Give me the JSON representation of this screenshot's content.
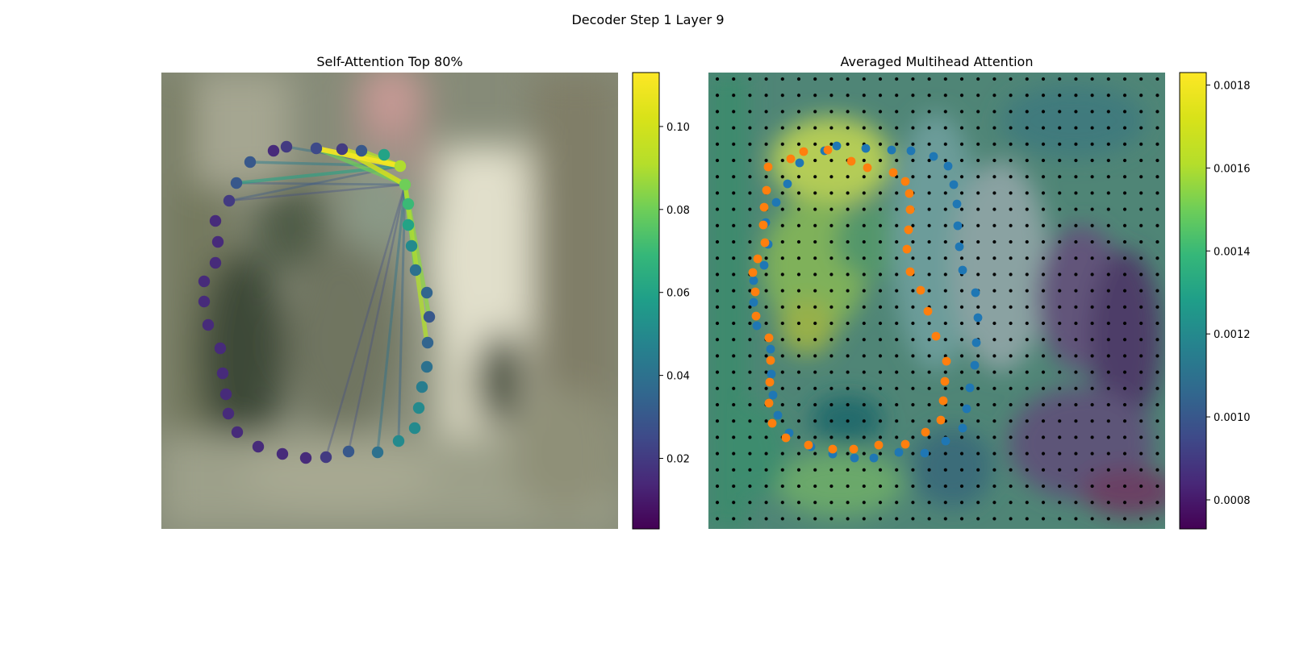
{
  "figure": {
    "suptitle": "Decoder Step 1 Layer 9"
  },
  "chart_data": [
    {
      "type": "scatter",
      "title": "Self-Attention Top 80%",
      "background": "blurred photo (muted green/beige)",
      "grid": false,
      "colormap": "viridis",
      "colorbar": {
        "ticks": [
          0.02,
          0.04,
          0.06,
          0.08,
          0.1
        ],
        "tick_labels": [
          "0.02",
          "0.04",
          "0.06",
          "0.08",
          "0.10"
        ],
        "range": [
          0.003,
          0.113
        ]
      },
      "points": [
        [
          355,
          182,
          0.02
        ],
        [
          392,
          184,
          0.025
        ],
        [
          424,
          185,
          0.02
        ],
        [
          448,
          187,
          0.03
        ],
        [
          476,
          192,
          0.06
        ],
        [
          496,
          206,
          0.09
        ],
        [
          502,
          229,
          0.08
        ],
        [
          506,
          253,
          0.07
        ],
        [
          506,
          279,
          0.06
        ],
        [
          510,
          305,
          0.05
        ],
        [
          515,
          335,
          0.04
        ],
        [
          529,
          363,
          0.035
        ],
        [
          532,
          393,
          0.03
        ],
        [
          530,
          425,
          0.035
        ],
        [
          529,
          455,
          0.04
        ],
        [
          523,
          480,
          0.045
        ],
        [
          519,
          506,
          0.05
        ],
        [
          514,
          531,
          0.05
        ],
        [
          494,
          547,
          0.05
        ],
        [
          468,
          561,
          0.04
        ],
        [
          432,
          560,
          0.03
        ],
        [
          404,
          567,
          0.02
        ],
        [
          379,
          568,
          0.015
        ],
        [
          350,
          563,
          0.015
        ],
        [
          320,
          554,
          0.015
        ],
        [
          294,
          536,
          0.015
        ],
        [
          283,
          513,
          0.015
        ],
        [
          280,
          489,
          0.015
        ],
        [
          276,
          463,
          0.015
        ],
        [
          273,
          432,
          0.015
        ],
        [
          258,
          403,
          0.015
        ],
        [
          253,
          374,
          0.015
        ],
        [
          253,
          349,
          0.015
        ],
        [
          267,
          326,
          0.015
        ],
        [
          270,
          300,
          0.015
        ],
        [
          267,
          274,
          0.015
        ],
        [
          284,
          249,
          0.02
        ],
        [
          293,
          227,
          0.03
        ],
        [
          310,
          201,
          0.03
        ],
        [
          339,
          187,
          0.015
        ]
      ],
      "attention_lines": [
        [
          496,
          206,
          392,
          184,
          0.11
        ],
        [
          496,
          206,
          424,
          185,
          0.1
        ],
        [
          496,
          206,
          448,
          187,
          0.09
        ],
        [
          496,
          206,
          293,
          227,
          0.06
        ],
        [
          496,
          206,
          310,
          201,
          0.045
        ],
        [
          496,
          206,
          284,
          249,
          0.03
        ],
        [
          496,
          206,
          355,
          182,
          0.04
        ],
        [
          502,
          229,
          529,
          425,
          0.09
        ],
        [
          502,
          229,
          532,
          393,
          0.085
        ],
        [
          502,
          229,
          515,
          335,
          0.08
        ],
        [
          502,
          229,
          424,
          185,
          0.1
        ],
        [
          502,
          229,
          392,
          184,
          0.08
        ],
        [
          502,
          229,
          468,
          561,
          0.04
        ],
        [
          502,
          229,
          494,
          547,
          0.035
        ],
        [
          502,
          229,
          404,
          567,
          0.025
        ],
        [
          502,
          229,
          432,
          560,
          0.025
        ],
        [
          502,
          229,
          293,
          227,
          0.03
        ],
        [
          502,
          229,
          284,
          249,
          0.025
        ]
      ]
    },
    {
      "type": "scatter",
      "title": "Averaged Multihead Attention",
      "background": "blurred photo blended with attention heatmap and black grid dots",
      "grid": false,
      "colormap": "viridis",
      "colorbar": {
        "ticks": [
          0.0008,
          0.001,
          0.0012,
          0.0014,
          0.0016,
          0.0018
        ],
        "tick_labels": [
          "0.0008",
          "0.0010",
          "0.0012",
          "0.0014",
          "0.0016",
          "0.0018"
        ],
        "range": [
          0.00073,
          0.00183
        ]
      },
      "series": [
        {
          "color": "#1f77b4",
          "points": [
            [
              1037,
              181
            ],
            [
              1073,
              184
            ],
            [
              1105,
              186
            ],
            [
              1129,
              187
            ],
            [
              1157,
              194
            ],
            [
              1175,
              206
            ],
            [
              1182,
              229
            ],
            [
              1186,
              253
            ],
            [
              1187,
              280
            ],
            [
              1189,
              306
            ],
            [
              1193,
              335
            ],
            [
              1209,
              363
            ],
            [
              1212,
              394
            ],
            [
              1210,
              425
            ],
            [
              1208,
              453
            ],
            [
              1202,
              481
            ],
            [
              1198,
              507
            ],
            [
              1193,
              531
            ],
            [
              1172,
              547
            ],
            [
              1146,
              562
            ],
            [
              1114,
              561
            ],
            [
              1083,
              568
            ],
            [
              1059,
              568
            ],
            [
              1032,
              563
            ],
            [
              1005,
              554
            ],
            [
              978,
              537
            ],
            [
              964,
              515
            ],
            [
              958,
              490
            ],
            [
              956,
              464
            ],
            [
              955,
              433
            ],
            [
              938,
              404
            ],
            [
              934,
              375
            ],
            [
              934,
              348
            ],
            [
              947,
              329
            ],
            [
              952,
              303
            ],
            [
              949,
              276
            ],
            [
              962,
              251
            ],
            [
              976,
              228
            ],
            [
              991,
              202
            ],
            [
              1022,
              187
            ]
          ]
        },
        {
          "color": "#ff7f0e",
          "points": [
            [
              1026,
              186
            ],
            [
              996,
              188
            ],
            [
              980,
              197
            ],
            [
              952,
              207
            ],
            [
              950,
              236
            ],
            [
              947,
              257
            ],
            [
              946,
              279
            ],
            [
              948,
              301
            ],
            [
              939,
              321
            ],
            [
              933,
              338
            ],
            [
              936,
              362
            ],
            [
              937,
              392
            ],
            [
              953,
              419
            ],
            [
              955,
              447
            ],
            [
              954,
              474
            ],
            [
              953,
              500
            ],
            [
              957,
              525
            ],
            [
              974,
              543
            ],
            [
              1002,
              552
            ],
            [
              1032,
              557
            ],
            [
              1058,
              557
            ],
            [
              1089,
              552
            ],
            [
              1122,
              551
            ],
            [
              1147,
              536
            ],
            [
              1166,
              521
            ],
            [
              1169,
              497
            ],
            [
              1171,
              473
            ],
            [
              1173,
              448
            ],
            [
              1160,
              417
            ],
            [
              1150,
              386
            ],
            [
              1141,
              360
            ],
            [
              1128,
              337
            ],
            [
              1124,
              309
            ],
            [
              1126,
              285
            ],
            [
              1128,
              260
            ],
            [
              1127,
              240
            ],
            [
              1122,
              225
            ],
            [
              1107,
              214
            ],
            [
              1075,
              208
            ],
            [
              1055,
              200
            ]
          ]
        }
      ]
    }
  ]
}
